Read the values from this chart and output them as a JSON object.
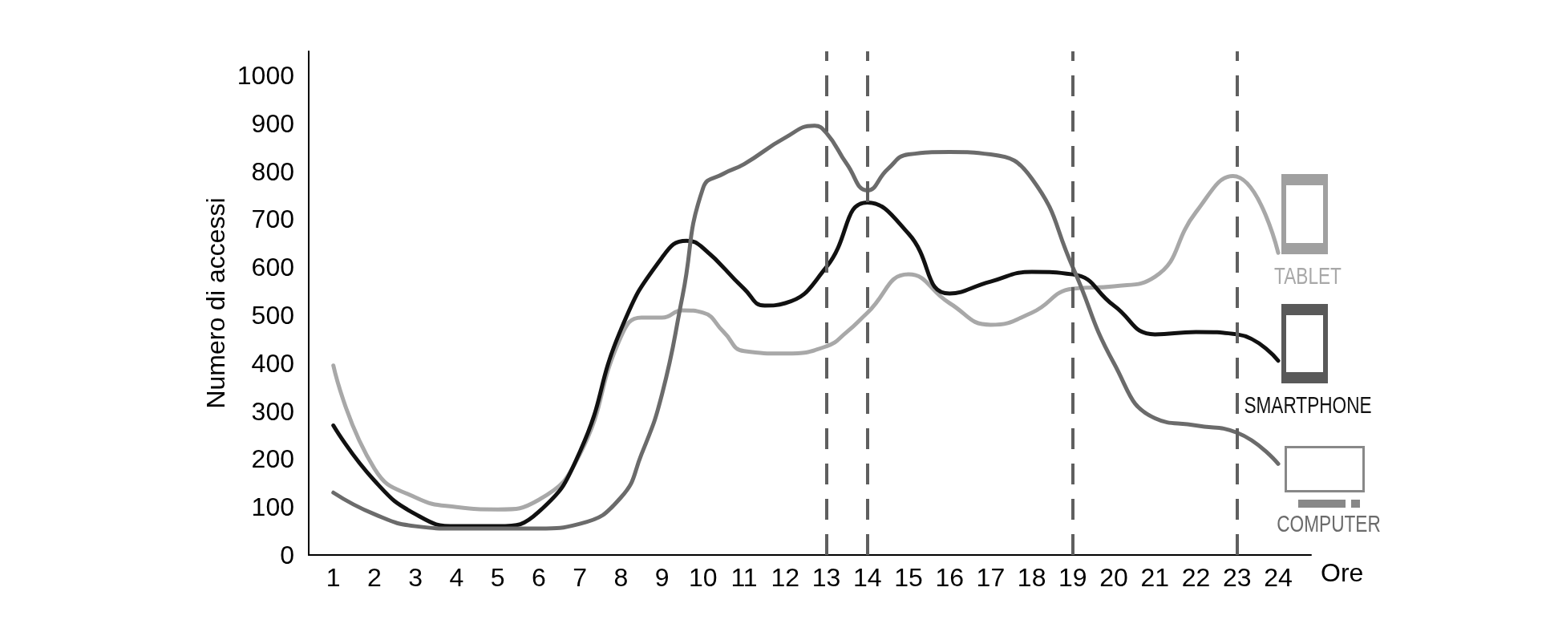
{
  "chart_data": {
    "type": "line",
    "xlabel": "Ore",
    "ylabel": "Numero di accessi",
    "xlim": [
      0.4,
      24.8
    ],
    "xticks": [
      1,
      2,
      3,
      4,
      5,
      6,
      7,
      8,
      9,
      10,
      11,
      12,
      13,
      14,
      15,
      16,
      17,
      18,
      19,
      20,
      21,
      22,
      23,
      24
    ],
    "ylim": [
      0,
      1050
    ],
    "yticks": [
      0,
      100,
      200,
      300,
      400,
      500,
      600,
      700,
      800,
      900,
      1000
    ],
    "series": [
      {
        "name": "TABLET",
        "color": "#a8a8a8",
        "x": [
          1,
          2,
          3,
          4,
          5,
          6,
          7,
          8,
          8.5,
          9,
          9.5,
          10,
          10.5,
          11,
          12,
          13,
          13.5,
          14,
          15,
          16,
          17,
          18,
          19,
          20,
          21,
          22,
          22.9,
          24
        ],
        "values": [
          395,
          180,
          120,
          100,
          95,
          115,
          210,
          455,
          495,
          495,
          510,
          505,
          465,
          425,
          420,
          435,
          465,
          505,
          585,
          525,
          480,
          505,
          555,
          560,
          580,
          715,
          790,
          630
        ]
      },
      {
        "name": "SMARTPHONE",
        "color": "#111111",
        "x": [
          1,
          2,
          3,
          4,
          5,
          6,
          7,
          8,
          9,
          9.6,
          10,
          11,
          11.5,
          12,
          13,
          14,
          15,
          16,
          17,
          18,
          19,
          20,
          21,
          22,
          23,
          24
        ],
        "values": [
          270,
          155,
          85,
          60,
          60,
          90,
          215,
          470,
          620,
          655,
          640,
          555,
          520,
          525,
          600,
          735,
          670,
          545,
          570,
          590,
          585,
          520,
          460,
          465,
          460,
          405
        ]
      },
      {
        "name": "COMPUTER",
        "color": "#6b6b6b",
        "x": [
          1,
          2,
          3,
          4,
          5,
          6,
          7,
          8,
          8.5,
          9,
          9.5,
          10,
          10.5,
          11,
          12,
          12.7,
          13,
          13.5,
          14,
          14.5,
          15,
          16,
          17,
          18,
          19,
          20,
          21,
          22,
          23,
          24
        ],
        "values": [
          130,
          85,
          60,
          55,
          55,
          55,
          65,
          120,
          210,
          335,
          540,
          765,
          795,
          815,
          870,
          895,
          880,
          815,
          760,
          805,
          835,
          840,
          835,
          785,
          600,
          400,
          285,
          270,
          255,
          190
        ]
      }
    ],
    "ref_lines": [
      {
        "axis": "x",
        "value": 13,
        "color": "#5f5f5f",
        "line_style": "dashed"
      },
      {
        "axis": "x",
        "value": 14,
        "color": "#5f5f5f",
        "line_style": "dashed"
      },
      {
        "axis": "x",
        "value": 19,
        "color": "#5f5f5f",
        "line_style": "dashed"
      },
      {
        "axis": "x",
        "value": 23,
        "color": "#5f5f5f",
        "line_style": "dashed"
      }
    ]
  }
}
